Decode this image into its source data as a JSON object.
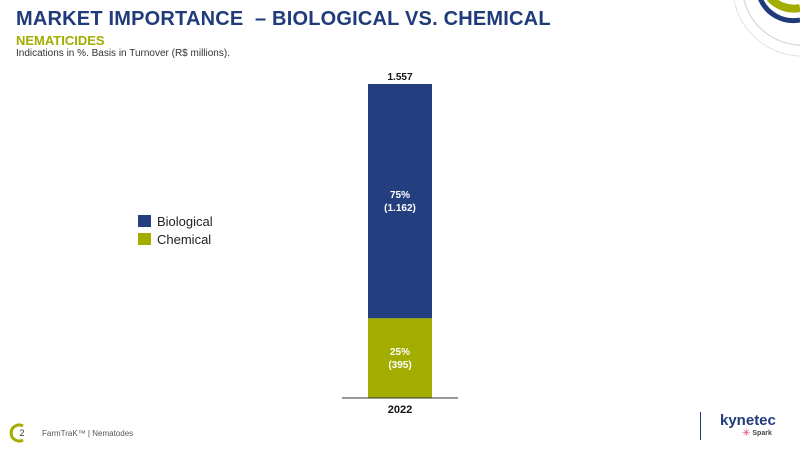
{
  "header": {
    "title": "MARKET IMPORTANCE  – BIOLOGICAL VS. CHEMICAL",
    "subtitle": "NEMATICIDES",
    "note": "Indications in %. Basis in Turnover (R$ millions)."
  },
  "colors": {
    "biological": "#243f80",
    "chemical": "#a2ad00",
    "title": "#1f3b7a",
    "accent": "#a2ad00"
  },
  "chart_data": {
    "type": "bar",
    "stacked": true,
    "categories": [
      "2022"
    ],
    "total_label": "1.557",
    "totals": [
      1557
    ],
    "series": [
      {
        "name": "Biological",
        "values": [
          1162
        ],
        "percent_labels": [
          "75%"
        ],
        "value_labels": [
          "(1.162)"
        ]
      },
      {
        "name": "Chemical",
        "values": [
          395
        ],
        "percent_labels": [
          "25%"
        ],
        "value_labels": [
          "(395)"
        ]
      }
    ],
    "ylim": [
      0,
      1557
    ],
    "legend_position": "left",
    "grid": false
  },
  "footer": {
    "page_number": "2",
    "text": "FarmTraK™ | Nematodes"
  },
  "logos": {
    "kynetec": "kynetec",
    "spark": "Spark"
  }
}
